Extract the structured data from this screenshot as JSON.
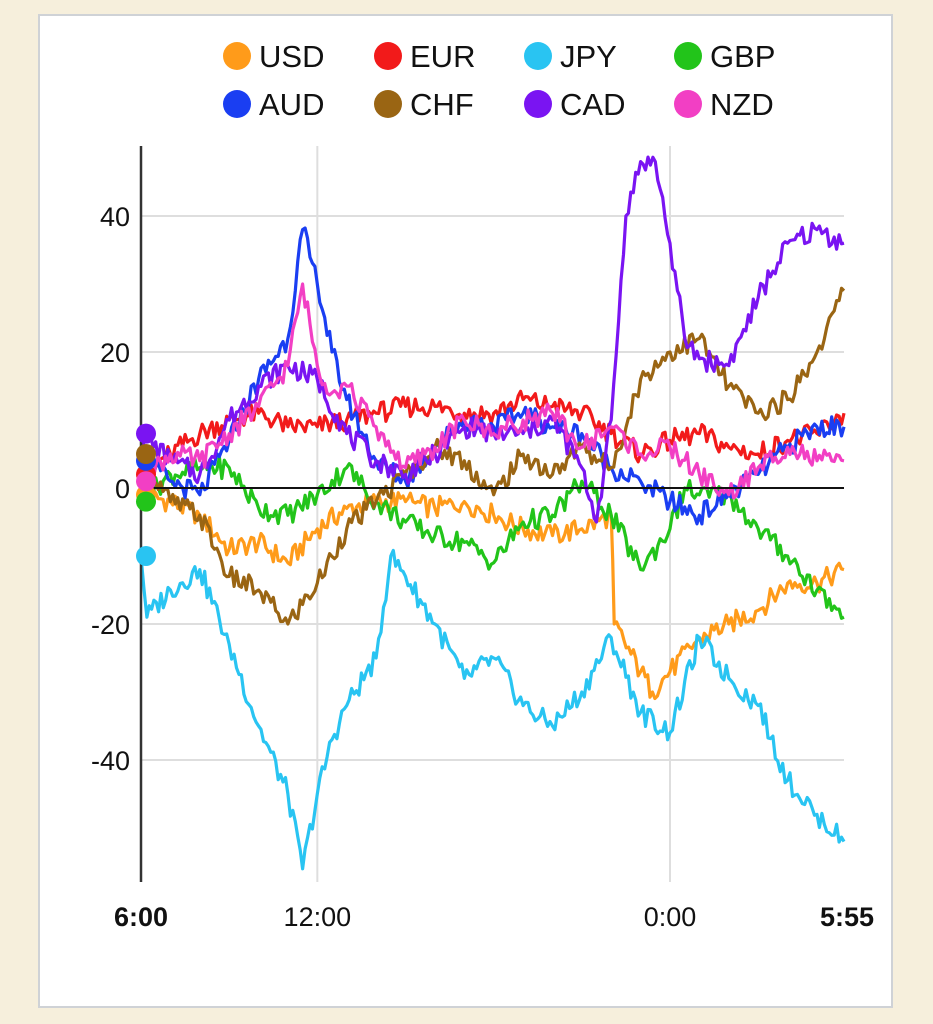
{
  "chart_data": {
    "type": "line",
    "title": "",
    "xlabel": "",
    "ylabel": "",
    "ylim": [
      -57,
      50
    ],
    "yticks": [
      40,
      20,
      0,
      -20,
      -40
    ],
    "ytick_labels": [
      "40",
      "20",
      "0",
      "-20",
      "-40"
    ],
    "x_range_hours": [
      0,
      23.92
    ],
    "x_tick_positions_hours": [
      0,
      6,
      18,
      23.92
    ],
    "xtick_labels": [
      "6:00",
      "12:00",
      "0:00",
      "5:55"
    ],
    "xtick_bold": [
      true,
      false,
      false,
      true
    ],
    "grid": true,
    "legend_position": "top",
    "series": [
      {
        "name": "USD",
        "color": "#ff9b1a",
        "points": [
          [
            0,
            -1
          ],
          [
            1,
            -2
          ],
          [
            2,
            -4
          ],
          [
            3,
            -9
          ],
          [
            4,
            -8
          ],
          [
            5,
            -11
          ],
          [
            6,
            -6
          ],
          [
            7,
            -3
          ],
          [
            8,
            -2
          ],
          [
            9,
            -2
          ],
          [
            10,
            -3
          ],
          [
            11,
            -2
          ],
          [
            12,
            -4
          ],
          [
            13,
            -6
          ],
          [
            14,
            -7
          ],
          [
            15,
            -6
          ],
          [
            16,
            -4
          ],
          [
            16.1,
            -20
          ],
          [
            17,
            -27
          ],
          [
            17.4,
            -30
          ],
          [
            18,
            -27
          ],
          [
            19,
            -22
          ],
          [
            20,
            -20
          ],
          [
            21,
            -18
          ],
          [
            22,
            -14
          ],
          [
            23,
            -14
          ],
          [
            23.92,
            -12
          ]
        ]
      },
      {
        "name": "EUR",
        "color": "#f21a1a",
        "points": [
          [
            0,
            2
          ],
          [
            1,
            5
          ],
          [
            2,
            8
          ],
          [
            3,
            10
          ],
          [
            4,
            11
          ],
          [
            5,
            9
          ],
          [
            6,
            9
          ],
          [
            7,
            10
          ],
          [
            8,
            11
          ],
          [
            9,
            12
          ],
          [
            10,
            12
          ],
          [
            11,
            11
          ],
          [
            12,
            11
          ],
          [
            13,
            13
          ],
          [
            14,
            12
          ],
          [
            15,
            11
          ],
          [
            16,
            8
          ],
          [
            17,
            5
          ],
          [
            18,
            7
          ],
          [
            19,
            8
          ],
          [
            20,
            6
          ],
          [
            21,
            5
          ],
          [
            22,
            7
          ],
          [
            23,
            8
          ],
          [
            23.92,
            11
          ]
        ]
      },
      {
        "name": "JPY",
        "color": "#29c4f2",
        "points": [
          [
            0,
            -10
          ],
          [
            0.2,
            -19
          ],
          [
            1,
            -15
          ],
          [
            2,
            -12
          ],
          [
            3,
            -23
          ],
          [
            4,
            -35
          ],
          [
            5,
            -45
          ],
          [
            5.5,
            -56
          ],
          [
            6,
            -45
          ],
          [
            6.5,
            -37
          ],
          [
            7,
            -32
          ],
          [
            8,
            -25
          ],
          [
            8.5,
            -10
          ],
          [
            9,
            -13
          ],
          [
            10,
            -20
          ],
          [
            11,
            -28
          ],
          [
            12,
            -25
          ],
          [
            13,
            -32
          ],
          [
            14,
            -35
          ],
          [
            15,
            -30
          ],
          [
            16,
            -22
          ],
          [
            17,
            -33
          ],
          [
            18,
            -36
          ],
          [
            19,
            -22
          ],
          [
            20,
            -28
          ],
          [
            21,
            -32
          ],
          [
            22,
            -43
          ],
          [
            23,
            -48
          ],
          [
            23.92,
            -52
          ]
        ]
      },
      {
        "name": "GBP",
        "color": "#22c41a",
        "points": [
          [
            0,
            -2
          ],
          [
            1,
            2
          ],
          [
            2,
            3
          ],
          [
            3,
            3
          ],
          [
            4,
            -3
          ],
          [
            5,
            -4
          ],
          [
            6,
            -1
          ],
          [
            7,
            3
          ],
          [
            8,
            -2
          ],
          [
            9,
            -5
          ],
          [
            10,
            -7
          ],
          [
            11,
            -8
          ],
          [
            12,
            -11
          ],
          [
            13,
            -5
          ],
          [
            14,
            -4
          ],
          [
            15,
            1
          ],
          [
            16,
            -4
          ],
          [
            17,
            -12
          ],
          [
            18,
            -6
          ],
          [
            18.5,
            0
          ],
          [
            19,
            -1
          ],
          [
            20,
            -1
          ],
          [
            21,
            -6
          ],
          [
            22,
            -10
          ],
          [
            23,
            -15
          ],
          [
            23.92,
            -19
          ]
        ]
      },
      {
        "name": "AUD",
        "color": "#1a3ef2",
        "points": [
          [
            0,
            4
          ],
          [
            1,
            1
          ],
          [
            2,
            -1
          ],
          [
            3,
            7
          ],
          [
            4,
            16
          ],
          [
            5,
            22
          ],
          [
            5.5,
            38
          ],
          [
            6,
            30
          ],
          [
            6.5,
            20
          ],
          [
            7,
            13
          ],
          [
            8,
            4
          ],
          [
            9,
            1
          ],
          [
            10,
            6
          ],
          [
            11,
            10
          ],
          [
            12,
            9
          ],
          [
            13,
            11
          ],
          [
            14,
            9
          ],
          [
            15,
            8
          ],
          [
            16,
            3
          ],
          [
            17,
            1
          ],
          [
            18,
            -2
          ],
          [
            19,
            -4
          ],
          [
            20,
            -1
          ],
          [
            21,
            2
          ],
          [
            22,
            6
          ],
          [
            23,
            9
          ],
          [
            23.92,
            9
          ]
        ]
      },
      {
        "name": "CHF",
        "color": "#9a6513",
        "points": [
          [
            0,
            5
          ],
          [
            1,
            -2
          ],
          [
            2,
            -4
          ],
          [
            3,
            -13
          ],
          [
            4,
            -15
          ],
          [
            5,
            -20
          ],
          [
            6,
            -14
          ],
          [
            7,
            -6
          ],
          [
            8,
            -2
          ],
          [
            9,
            2
          ],
          [
            10,
            6
          ],
          [
            11,
            4
          ],
          [
            12,
            -1
          ],
          [
            13,
            5
          ],
          [
            14,
            2
          ],
          [
            15,
            6
          ],
          [
            16,
            3
          ],
          [
            17,
            16
          ],
          [
            18,
            20
          ],
          [
            19,
            22
          ],
          [
            20,
            15
          ],
          [
            21,
            11
          ],
          [
            22,
            13
          ],
          [
            23,
            20
          ],
          [
            23.92,
            29
          ]
        ]
      },
      {
        "name": "CAD",
        "color": "#7a14f2",
        "points": [
          [
            0,
            8
          ],
          [
            1,
            4
          ],
          [
            2,
            2
          ],
          [
            3,
            10
          ],
          [
            4,
            15
          ],
          [
            5,
            18
          ],
          [
            6,
            16
          ],
          [
            7,
            8
          ],
          [
            8,
            4
          ],
          [
            9,
            2
          ],
          [
            10,
            5
          ],
          [
            11,
            9
          ],
          [
            12,
            8
          ],
          [
            13,
            8
          ],
          [
            14,
            10
          ],
          [
            15,
            3
          ],
          [
            15.5,
            -5
          ],
          [
            16,
            10
          ],
          [
            16.5,
            40
          ],
          [
            17,
            48
          ],
          [
            17.5,
            48
          ],
          [
            18,
            36
          ],
          [
            18.5,
            22
          ],
          [
            19,
            19
          ],
          [
            20,
            18
          ],
          [
            21,
            28
          ],
          [
            22,
            36
          ],
          [
            23,
            38
          ],
          [
            23.92,
            36
          ]
        ]
      },
      {
        "name": "NZD",
        "color": "#f23fc4",
        "points": [
          [
            0,
            1
          ],
          [
            1,
            5
          ],
          [
            2,
            4
          ],
          [
            3,
            8
          ],
          [
            4,
            12
          ],
          [
            5,
            18
          ],
          [
            5.5,
            30
          ],
          [
            6,
            18
          ],
          [
            6.5,
            14
          ],
          [
            7,
            15
          ],
          [
            8,
            9
          ],
          [
            9,
            3
          ],
          [
            10,
            6
          ],
          [
            11,
            10
          ],
          [
            12,
            8
          ],
          [
            13,
            10
          ],
          [
            14,
            11
          ],
          [
            15,
            6
          ],
          [
            16,
            9
          ],
          [
            17,
            5
          ],
          [
            18,
            6
          ],
          [
            19,
            2
          ],
          [
            20,
            -1
          ],
          [
            21,
            3
          ],
          [
            22,
            6
          ],
          [
            23,
            4
          ],
          [
            23.92,
            4
          ]
        ]
      }
    ]
  }
}
